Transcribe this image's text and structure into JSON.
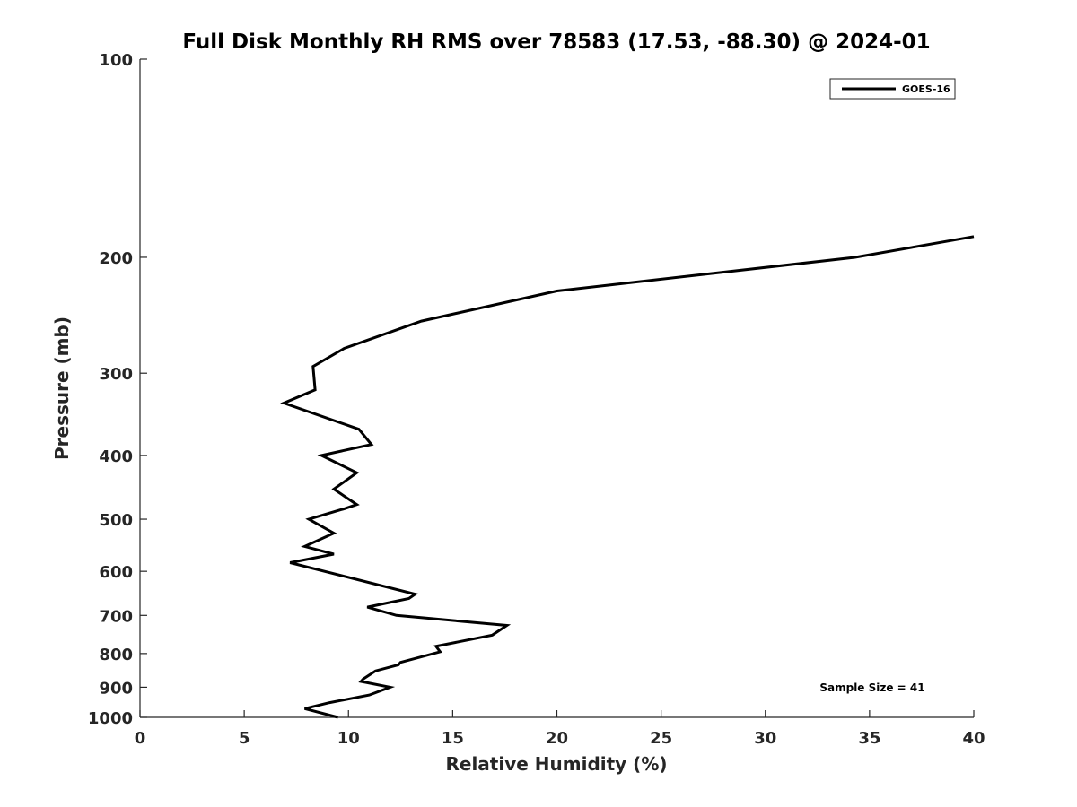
{
  "chart_data": {
    "type": "line",
    "title": "Full Disk Monthly RH RMS over 78583 (17.53, -88.30) @ 2024-01",
    "xlabel": "Relative Humidity (%)",
    "ylabel": "Pressure (mb)",
    "xlim": [
      0,
      40
    ],
    "ylim": [
      100,
      1000
    ],
    "y_scale": "log",
    "y_reversed": true,
    "x_ticks": [
      0,
      5,
      10,
      15,
      20,
      25,
      30,
      35,
      40
    ],
    "x_tick_labels": [
      "0",
      "5",
      "10",
      "15",
      "20",
      "25",
      "30",
      "35",
      "40"
    ],
    "y_ticks": [
      100,
      200,
      300,
      400,
      500,
      600,
      700,
      800,
      900,
      1000
    ],
    "y_tick_labels": [
      "100",
      "200",
      "300",
      "400",
      "500",
      "600",
      "700",
      "800",
      "900",
      "1000"
    ],
    "grid": false,
    "legend_position": "top-right",
    "annotation": "Sample Size = 41",
    "series": [
      {
        "name": "GOES-16",
        "color": "#000000",
        "points": [
          [
            40.0,
            186
          ],
          [
            34.3,
            200
          ],
          [
            20.0,
            225
          ],
          [
            13.5,
            250
          ],
          [
            9.8,
            275
          ],
          [
            8.3,
            293
          ],
          [
            8.4,
            318
          ],
          [
            6.9,
            333
          ],
          [
            10.5,
            365
          ],
          [
            11.1,
            385
          ],
          [
            8.7,
            400
          ],
          [
            10.4,
            425
          ],
          [
            9.3,
            450
          ],
          [
            10.4,
            475
          ],
          [
            9.8,
            482
          ],
          [
            8.1,
            500
          ],
          [
            9.3,
            525
          ],
          [
            7.9,
            550
          ],
          [
            9.3,
            565
          ],
          [
            7.2,
            582
          ],
          [
            13.2,
            650
          ],
          [
            12.9,
            660
          ],
          [
            10.9,
            680
          ],
          [
            12.3,
            700
          ],
          [
            17.6,
            725
          ],
          [
            16.9,
            750
          ],
          [
            14.2,
            780
          ],
          [
            14.4,
            795
          ],
          [
            12.5,
            825
          ],
          [
            12.4,
            832
          ],
          [
            11.3,
            850
          ],
          [
            10.7,
            875
          ],
          [
            10.6,
            882
          ],
          [
            12.0,
            900
          ],
          [
            11.0,
            925
          ],
          [
            9.1,
            950
          ],
          [
            7.9,
            970
          ],
          [
            9.5,
            1000
          ]
        ]
      }
    ]
  }
}
